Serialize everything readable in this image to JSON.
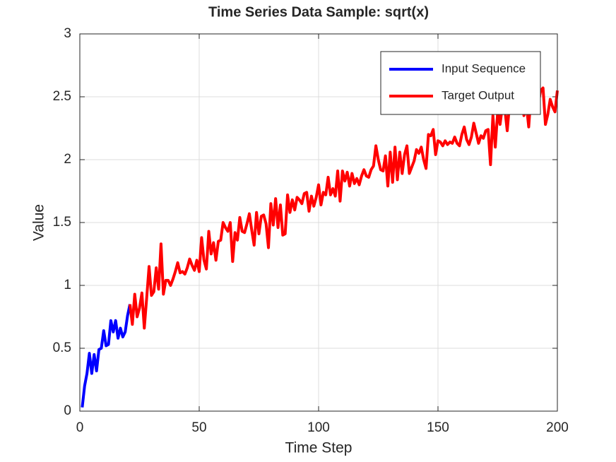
{
  "chart_data": {
    "type": "line",
    "title": "Time Series Data Sample: sqrt(x)",
    "x_label": "Time Step",
    "y_label": "Value",
    "xlim": [
      0,
      200
    ],
    "xticks": [
      0,
      50,
      100,
      150,
      200
    ],
    "ylim": [
      0,
      3
    ],
    "yticks": [
      0,
      0.5,
      1,
      1.5,
      2,
      2.5,
      3
    ],
    "grid": true,
    "legend": "northeast",
    "series": [
      {
        "name": "Input Sequence",
        "color": "#0000ff",
        "x": [
          1,
          2,
          3,
          4,
          5,
          6,
          7,
          8,
          9,
          10,
          11,
          12,
          13,
          14,
          15,
          16,
          17,
          18,
          19,
          20,
          21
        ],
        "values": [
          0.03,
          0.2,
          0.3,
          0.46,
          0.3,
          0.45,
          0.32,
          0.49,
          0.5,
          0.64,
          0.52,
          0.53,
          0.72,
          0.63,
          0.72,
          0.58,
          0.66,
          0.59,
          0.63,
          0.76,
          0.85
        ]
      },
      {
        "name": "Target Output",
        "color": "#ff0000",
        "x": [
          21,
          22,
          23,
          24,
          25,
          26,
          27,
          28,
          29,
          30,
          31,
          32,
          33,
          34,
          35,
          36,
          37,
          38,
          39,
          40,
          41,
          42,
          43,
          44,
          45,
          46,
          47,
          48,
          49,
          50,
          51,
          52,
          53,
          54,
          55,
          56,
          57,
          58,
          59,
          60,
          61,
          62,
          63,
          64,
          65,
          66,
          67,
          68,
          69,
          70,
          71,
          72,
          73,
          74,
          75,
          76,
          77,
          78,
          79,
          80,
          81,
          82,
          83,
          84,
          85,
          86,
          87,
          88,
          89,
          90,
          91,
          92,
          93,
          94,
          95,
          96,
          97,
          98,
          99,
          100,
          101,
          102,
          103,
          104,
          105,
          106,
          107,
          108,
          109,
          110,
          111,
          112,
          113,
          114,
          115,
          116,
          117,
          118,
          119,
          120,
          121,
          122,
          123,
          124,
          125,
          126,
          127,
          128,
          129,
          130,
          131,
          132,
          133,
          134,
          135,
          136,
          137,
          138,
          139,
          140,
          141,
          142,
          143,
          144,
          145,
          146,
          147,
          148,
          149,
          150,
          151,
          152,
          153,
          154,
          155,
          156,
          157,
          158,
          159,
          160,
          161,
          162,
          163,
          164,
          165,
          166,
          167,
          168,
          169,
          170,
          171,
          172,
          173,
          174,
          175,
          176,
          177,
          178,
          179,
          180,
          181,
          182,
          183,
          184,
          185,
          186,
          187,
          188,
          189,
          190,
          191,
          192,
          193,
          194,
          195,
          196,
          197,
          198,
          199,
          200
        ],
        "values": [
          0.85,
          0.69,
          0.93,
          0.75,
          0.82,
          0.94,
          0.66,
          0.9,
          1.15,
          0.92,
          0.95,
          1.14,
          0.97,
          1.33,
          0.93,
          1.04,
          1.04,
          1.0,
          1.05,
          1.11,
          1.18,
          1.1,
          1.11,
          1.09,
          1.14,
          1.21,
          1.16,
          1.12,
          1.2,
          1.11,
          1.38,
          1.2,
          1.13,
          1.43,
          1.25,
          1.34,
          1.2,
          1.35,
          1.36,
          1.5,
          1.46,
          1.43,
          1.5,
          1.19,
          1.42,
          1.36,
          1.54,
          1.43,
          1.42,
          1.49,
          1.57,
          1.44,
          1.32,
          1.58,
          1.41,
          1.55,
          1.56,
          1.49,
          1.3,
          1.65,
          1.48,
          1.69,
          1.46,
          1.64,
          1.4,
          1.41,
          1.72,
          1.58,
          1.68,
          1.6,
          1.7,
          1.68,
          1.65,
          1.73,
          1.74,
          1.59,
          1.71,
          1.63,
          1.7,
          1.8,
          1.64,
          1.74,
          1.72,
          1.86,
          1.72,
          1.77,
          1.71,
          1.91,
          1.67,
          1.91,
          1.83,
          1.9,
          1.79,
          1.89,
          1.81,
          1.85,
          1.8,
          1.87,
          1.92,
          1.87,
          1.86,
          1.92,
          1.95,
          2.11,
          2.0,
          1.92,
          1.91,
          2.03,
          1.79,
          2.06,
          1.82,
          2.1,
          1.84,
          2.06,
          1.89,
          2.04,
          2.11,
          1.89,
          1.94,
          1.99,
          2.08,
          2.05,
          2.1,
          2.0,
          1.93,
          2.2,
          2.19,
          2.24,
          2.04,
          2.15,
          2.14,
          2.11,
          2.15,
          2.12,
          2.14,
          2.13,
          2.18,
          2.13,
          2.11,
          2.2,
          2.26,
          2.16,
          2.12,
          2.18,
          2.29,
          2.21,
          2.13,
          2.19,
          2.17,
          2.23,
          2.24,
          1.96,
          2.35,
          2.1,
          2.38,
          2.28,
          2.43,
          2.4,
          2.23,
          2.45,
          2.4,
          2.4,
          2.52,
          2.43,
          2.48,
          2.35,
          2.44,
          2.26,
          2.53,
          2.44,
          2.38,
          2.44,
          2.55,
          2.57,
          2.28,
          2.36,
          2.48,
          2.42,
          2.38,
          2.55
        ]
      }
    ]
  }
}
